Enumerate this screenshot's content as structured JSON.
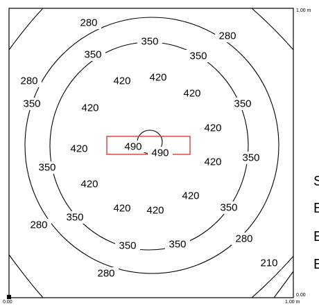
{
  "contour_plot": {
    "colors": {
      "lines": "#000000",
      "highlight": "#e53935",
      "background": "#ffffff"
    },
    "axis": {
      "x_start": "0.00",
      "x_end": "1.00 m",
      "y_start": "0.00",
      "y_end": "1.00 m"
    },
    "levels": [
      {
        "value": "280",
        "labels": [
          "280",
          "280",
          "280",
          "280",
          "280",
          "280"
        ]
      },
      {
        "value": "350",
        "labels": [
          "350",
          "350",
          "350",
          "350",
          "350",
          "350",
          "350",
          "350",
          "350",
          "350",
          "350"
        ]
      },
      {
        "value": "420",
        "labels": [
          "420",
          "420",
          "420",
          "420",
          "420",
          "420",
          "420",
          "420",
          "420",
          "420",
          "420",
          "420"
        ]
      },
      {
        "value": "490",
        "labels": [
          "490",
          "490"
        ]
      }
    ],
    "corner_label": "210"
  },
  "side_letters": [
    "S",
    "E",
    "E",
    "E"
  ]
}
